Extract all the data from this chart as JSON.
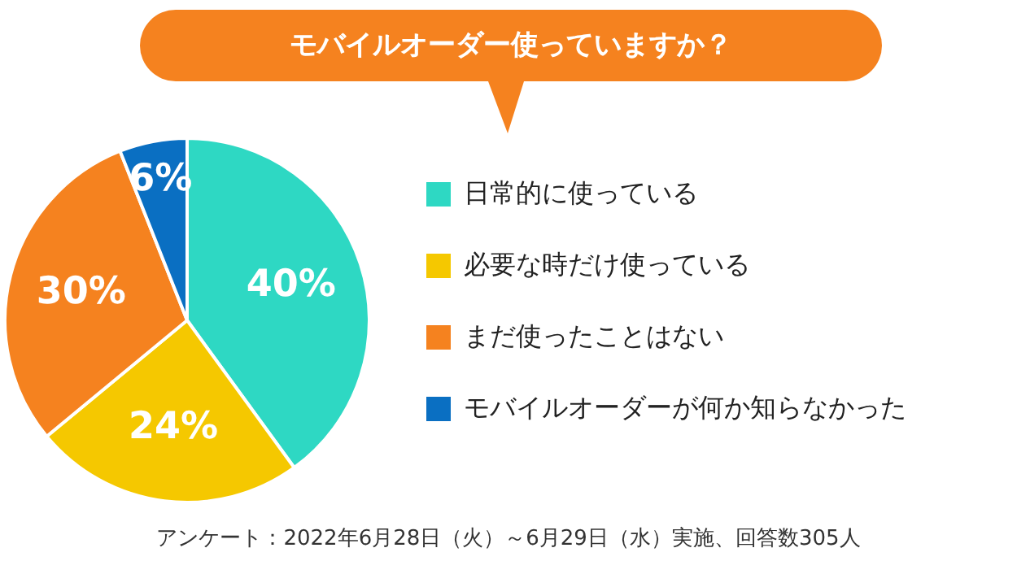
{
  "chart_data": {
    "type": "pie",
    "title": "モバイルオーダー使っていますか？",
    "categories": [
      "日常的に使っている",
      "必要な時だけ使っている",
      "まだ使ったことはない",
      "モバイルオーダーが何か知らなかった"
    ],
    "values": [
      40,
      24,
      30,
      6
    ],
    "colors": [
      "#2ed8c3",
      "#f5c800",
      "#f5821f",
      "#0a6fc2"
    ],
    "value_labels": [
      "40%",
      "24%",
      "30%",
      "6%"
    ],
    "legend": "right",
    "annotations": [
      "アンケート：2022年6月28日（火）～6月29日（水）実施、回答数305人"
    ]
  }
}
